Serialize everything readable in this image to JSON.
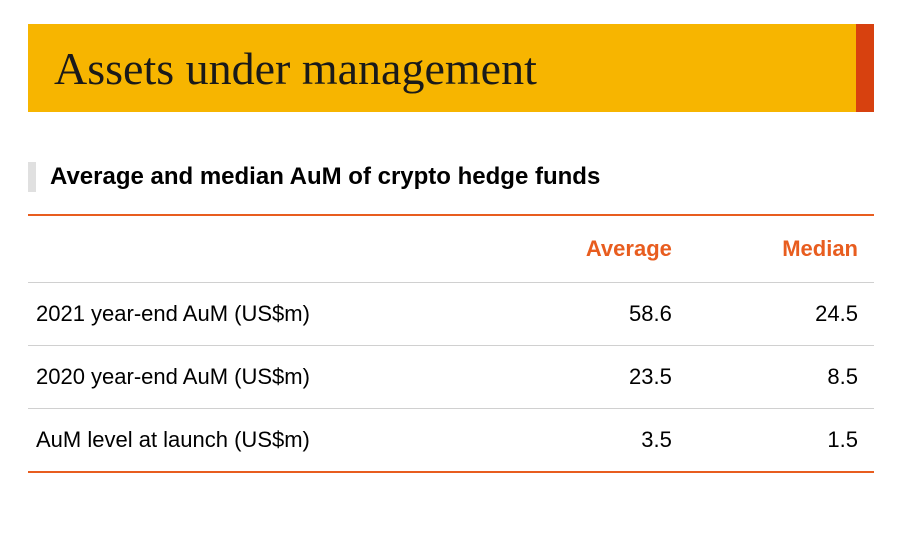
{
  "title": {
    "text": "Assets under management",
    "background_color": "#f7b500",
    "accent_color": "#d7410f",
    "text_color": "#1a1a1a",
    "font_family": "Georgia, serif",
    "font_size_pt": 34
  },
  "subtitle": {
    "marker_color": "#e0e0e0",
    "text": "Average and median AuM of crypto hedge funds",
    "text_color": "#000000",
    "font_size_pt": 18,
    "font_weight": 700
  },
  "table": {
    "type": "table",
    "border_top_color": "#e85d1f",
    "row_border_color": "#d0d0d0",
    "border_bottom_color": "#e85d1f",
    "header_text_color": "#e85d1f",
    "body_text_color": "#000000",
    "columns": [
      {
        "label": "",
        "align": "left"
      },
      {
        "label": "Average",
        "align": "right"
      },
      {
        "label": "Median",
        "align": "right"
      }
    ],
    "rows": [
      {
        "label": "2021 year-end AuM (US$m)",
        "average": "58.6",
        "median": "24.5"
      },
      {
        "label": "2020 year-end AuM (US$m)",
        "average": "23.5",
        "median": "8.5"
      },
      {
        "label": "AuM level at launch (US$m)",
        "average": "3.5",
        "median": "1.5"
      }
    ]
  },
  "background_color": "#ffffff"
}
